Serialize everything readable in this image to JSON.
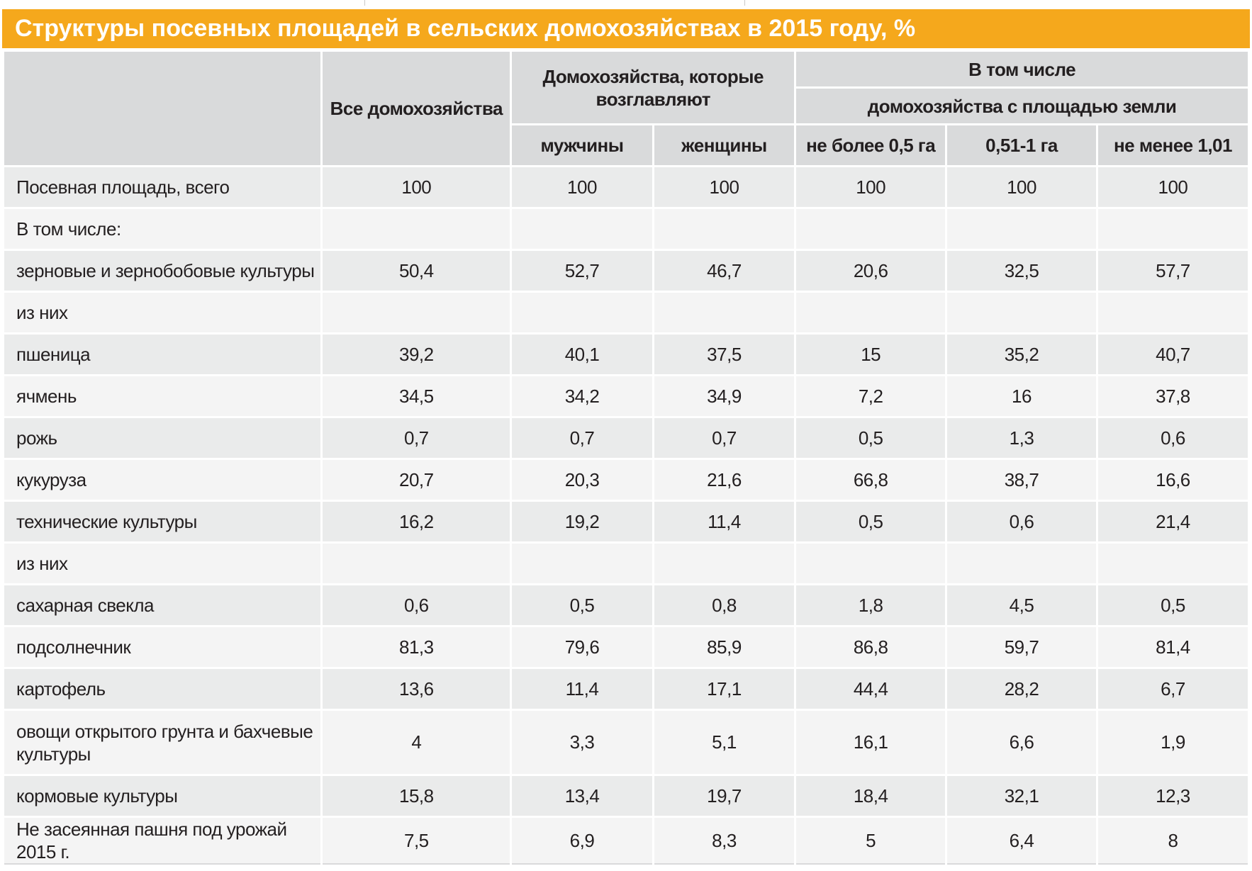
{
  "title": "Структуры посевных площадей в сельских домохозяйствах в 2015 году, %",
  "headers": {
    "all_households": "Все домохозяйства",
    "headed_by": "Домохозяйства, которые возглавляют",
    "men": "мужчины",
    "women": "женщины",
    "including": "В том числе",
    "by_land_area": "домохозяйства с площадью земли",
    "area_1": "не более 0,5 га",
    "area_2": "0,51-1 га",
    "area_3": "не менее 1,01"
  },
  "rows": [
    {
      "label": "Посевная площадь, всего",
      "values": [
        "100",
        "100",
        "100",
        "100",
        "100",
        "100"
      ]
    },
    {
      "label": "В том числе:",
      "values": []
    },
    {
      "label": "зерновые и зернобобовые культуры",
      "values": [
        "50,4",
        "52,7",
        "46,7",
        "20,6",
        "32,5",
        "57,7"
      ]
    },
    {
      "label": "из них",
      "values": []
    },
    {
      "label": "пшеница",
      "values": [
        "39,2",
        "40,1",
        "37,5",
        "15",
        "35,2",
        "40,7"
      ]
    },
    {
      "label": "ячмень",
      "values": [
        "34,5",
        "34,2",
        "34,9",
        "7,2",
        "16",
        "37,8"
      ]
    },
    {
      "label": "рожь",
      "values": [
        "0,7",
        "0,7",
        "0,7",
        "0,5",
        "1,3",
        "0,6"
      ]
    },
    {
      "label": "кукуруза",
      "values": [
        "20,7",
        "20,3",
        "21,6",
        "66,8",
        "38,7",
        "16,6"
      ]
    },
    {
      "label": "технические культуры",
      "values": [
        "16,2",
        "19,2",
        "11,4",
        "0,5",
        "0,6",
        "21,4"
      ]
    },
    {
      "label": "из них",
      "values": []
    },
    {
      "label": "сахарная свекла",
      "values": [
        "0,6",
        "0,5",
        "0,8",
        "1,8",
        "4,5",
        "0,5"
      ]
    },
    {
      "label": "подсолнечник",
      "values": [
        "81,3",
        "79,6",
        "85,9",
        "86,8",
        "59,7",
        "81,4"
      ]
    },
    {
      "label": "картофель",
      "values": [
        "13,6",
        "11,4",
        "17,1",
        "44,4",
        "28,2",
        "6,7"
      ]
    },
    {
      "label": "овощи открытого грунта и бахчевые культуры",
      "values": [
        "4",
        "3,3",
        "5,1",
        "16,1",
        "6,6",
        "1,9"
      ],
      "tall": true
    },
    {
      "label": "кормовые культуры",
      "values": [
        "15,8",
        "13,4",
        "19,7",
        "18,4",
        "32,1",
        "12,3"
      ]
    },
    {
      "label": "Не засеянная пашня под урожай 2015 г.",
      "values": [
        "7,5",
        "6,9",
        "8,3",
        "5",
        "6,4",
        "8"
      ]
    }
  ]
}
